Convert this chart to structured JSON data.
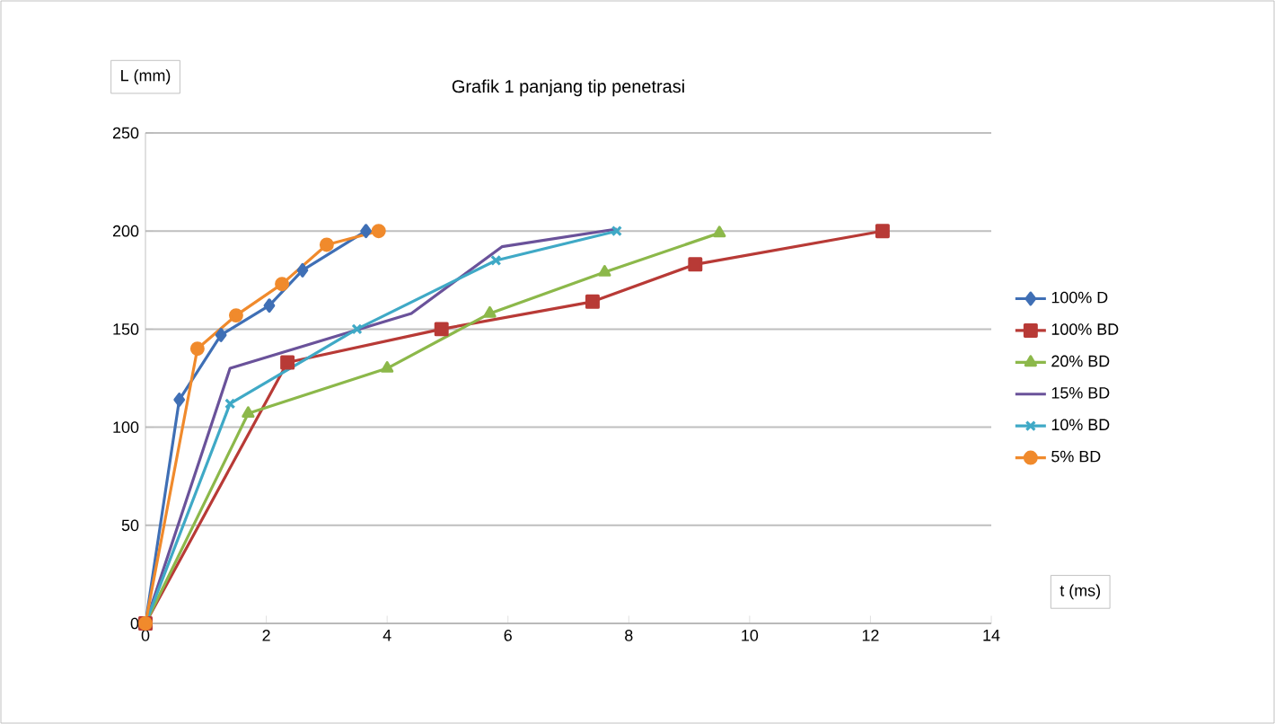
{
  "chart_data": {
    "type": "line",
    "title": "Grafik   1 panjang tip penetrasi",
    "xlabel": "t (ms)",
    "ylabel": "L  (mm)",
    "xlim": [
      0,
      14
    ],
    "xticks": [
      0,
      2,
      4,
      6,
      8,
      10,
      12,
      14
    ],
    "ylim": [
      0,
      250
    ],
    "yticks": [
      0,
      50,
      100,
      150,
      200,
      250
    ],
    "grid": "y",
    "legend": "right",
    "series": [
      {
        "name": "100% D",
        "color": "#3f6fb5",
        "marker": "diamond",
        "x": [
          0,
          0.56,
          1.25,
          2.05,
          2.6,
          3.65
        ],
        "values": [
          0,
          114,
          147,
          162,
          180,
          200
        ]
      },
      {
        "name": "100% BD",
        "color": "#b83a36",
        "marker": "square",
        "x": [
          0,
          2.35,
          4.9,
          7.4,
          9.1,
          12.2
        ],
        "values": [
          0,
          133,
          150,
          164,
          183,
          200
        ]
      },
      {
        "name": "20% BD",
        "color": "#8cb84a",
        "marker": "triangle",
        "x": [
          0,
          1.7,
          4.0,
          5.7,
          7.6,
          9.5
        ],
        "values": [
          0,
          107,
          130,
          158,
          179,
          199
        ]
      },
      {
        "name": "15% BD",
        "color": "#6a529a",
        "marker": "none",
        "x": [
          0,
          1.4,
          4.4,
          5.9,
          7.8
        ],
        "values": [
          0,
          130,
          158,
          192,
          201
        ]
      },
      {
        "name": "10% BD",
        "color": "#3fa9c6",
        "marker": "cross",
        "x": [
          0,
          1.4,
          3.5,
          5.8,
          7.8
        ],
        "values": [
          0,
          112,
          150,
          185,
          200
        ]
      },
      {
        "name": "5% BD",
        "color": "#f08a2c",
        "marker": "circle",
        "x": [
          0,
          0.86,
          1.5,
          2.26,
          3.0,
          3.86
        ],
        "values": [
          0,
          140,
          157,
          173,
          193,
          200
        ]
      }
    ]
  }
}
